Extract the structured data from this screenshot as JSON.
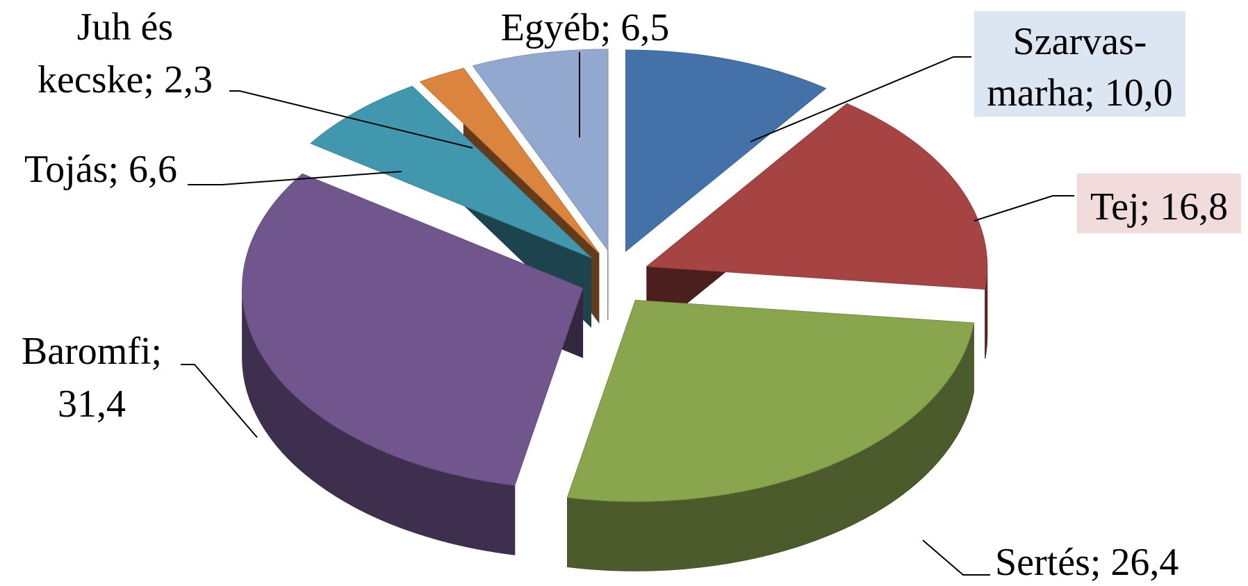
{
  "chart_data": {
    "type": "pie",
    "style": "exploded 3D pie",
    "title": "",
    "legend": "none",
    "slices": [
      {
        "label": "Szarvas-marha",
        "value_label": "10,0",
        "value": 10.0,
        "color": "#4472A8",
        "label_bg": "#DCE6F2",
        "label_lines": [
          "Szarvas-",
          "marha; 10,0"
        ]
      },
      {
        "label": "Tej",
        "value_label": "16,8",
        "value": 16.8,
        "color": "#A54442",
        "label_bg": "#F2DCDB",
        "label_lines": [
          "Tej; 16,8"
        ]
      },
      {
        "label": "Sertés",
        "value_label": "26,4",
        "value": 26.4,
        "color": "#89A54E",
        "label_bg": "",
        "label_lines": [
          "Sertés; 26,4"
        ]
      },
      {
        "label": "Baromfi",
        "value_label": "31,4",
        "value": 31.4,
        "color": "#71568E",
        "label_bg": "",
        "label_lines": [
          "Baromfi;",
          "31,4"
        ]
      },
      {
        "label": "Tojás",
        "value_label": "6,6",
        "value": 6.6,
        "color": "#4197AE",
        "label_bg": "",
        "label_lines": [
          "Tojás; 6,6"
        ]
      },
      {
        "label": "Juh és kecske",
        "value_label": "2,3",
        "value": 2.3,
        "color": "#DB843D",
        "label_bg": "",
        "label_lines": [
          "Juh és",
          "kecske; 2,3"
        ]
      },
      {
        "label": "Egyéb",
        "value_label": "6,5",
        "value": 6.5,
        "color": "#93A8CF",
        "label_bg": "",
        "label_lines": [
          "Egyéb; 6,5"
        ]
      }
    ]
  }
}
